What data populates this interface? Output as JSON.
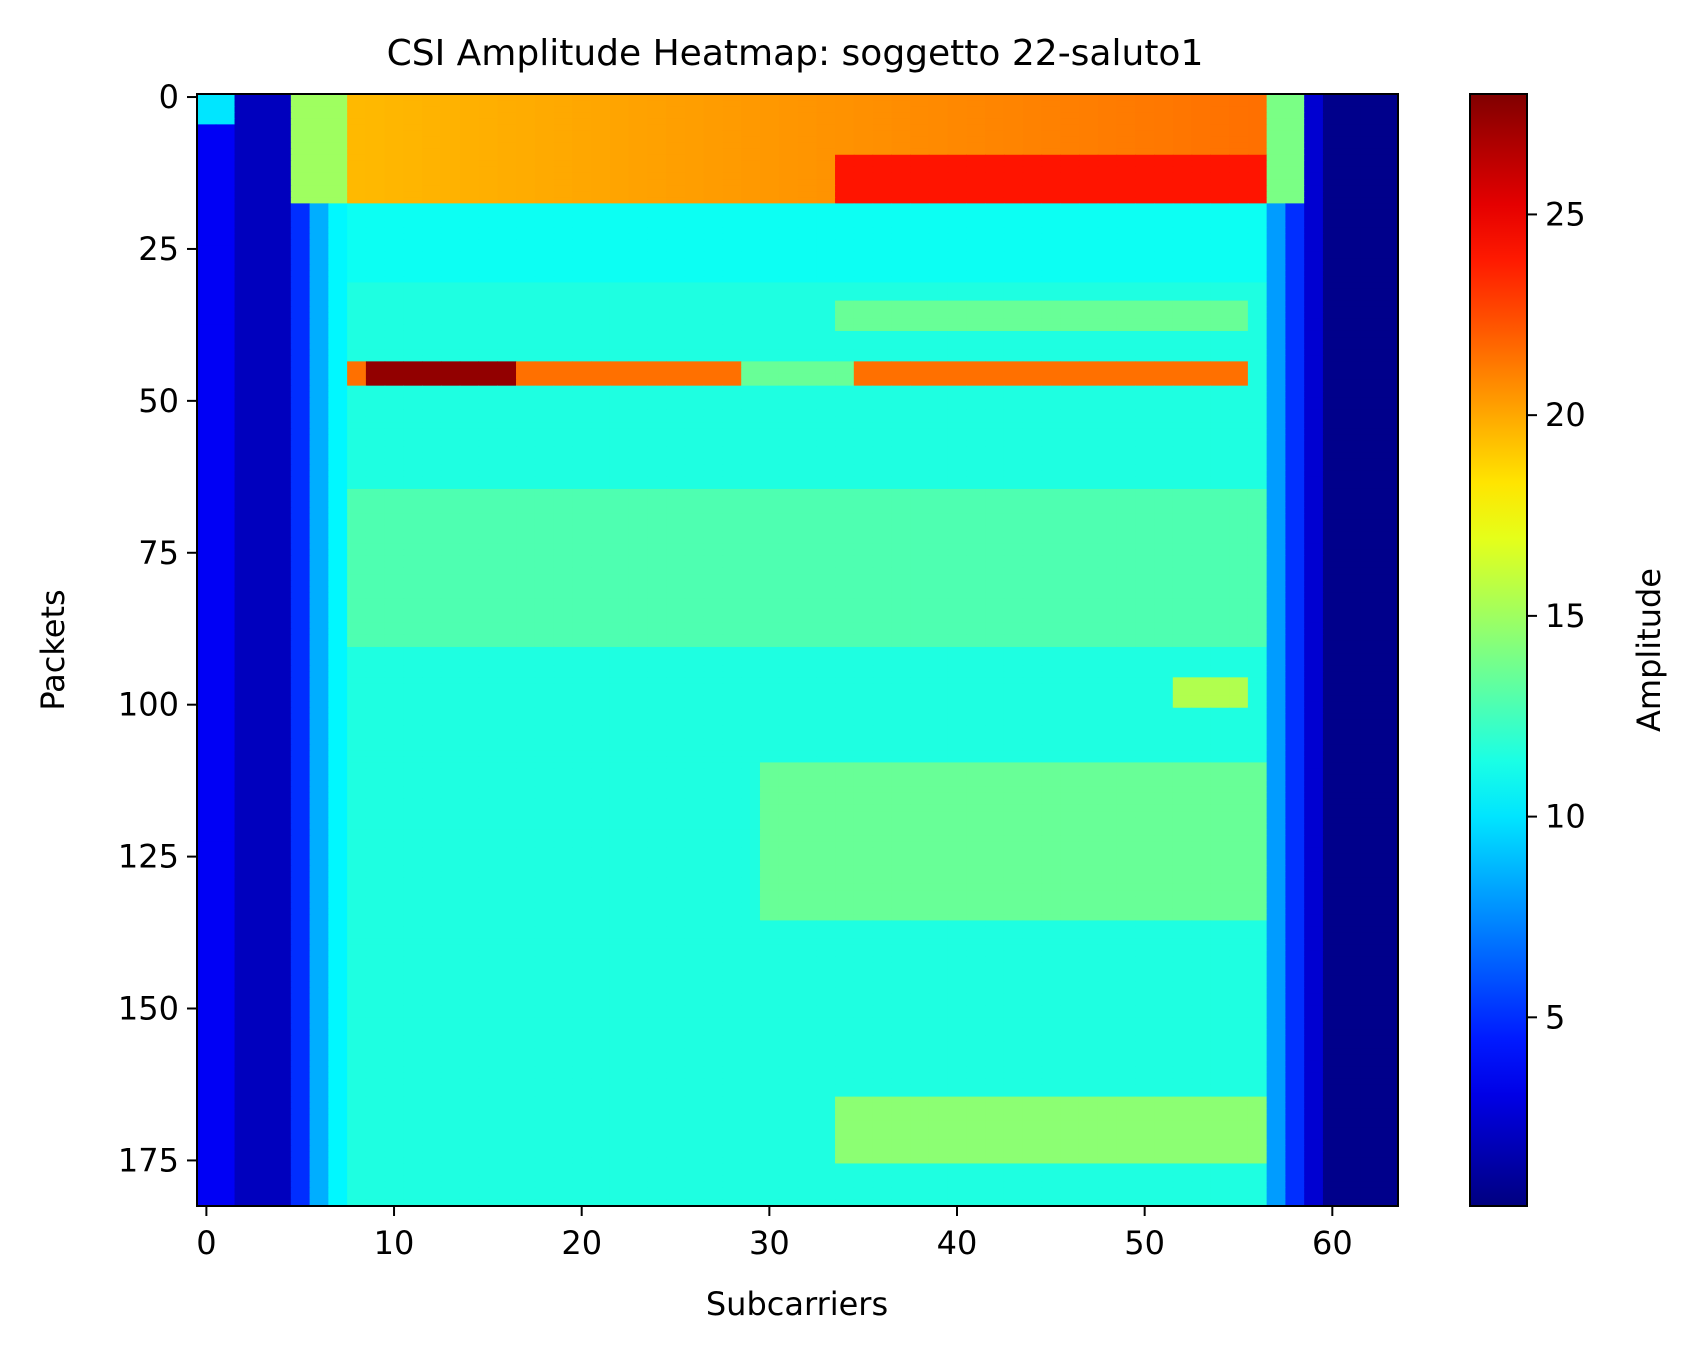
{
  "chart_data": {
    "type": "heatmap",
    "title": "CSI Amplitude Heatmap: soggetto 22-saluto1",
    "xlabel": "Subcarriers",
    "ylabel": "Packets",
    "colorbar_label": "Amplitude",
    "colormap": "jet",
    "y_axis_inverted": true,
    "n_subcarriers": 64,
    "n_packets": 183,
    "xlim": [
      -0.5,
      63.5
    ],
    "ylim": [
      182.5,
      -0.5
    ],
    "x_ticks": [
      0,
      10,
      20,
      30,
      40,
      50,
      60
    ],
    "y_ticks": [
      0,
      25,
      50,
      75,
      100,
      125,
      150,
      175
    ],
    "colorbar_range": [
      0.3,
      28
    ],
    "colorbar_ticks": [
      5,
      10,
      15,
      20,
      25
    ],
    "column_profile": [
      {
        "subcarriers": [
          0,
          1
        ],
        "amplitude": 3.5
      },
      {
        "subcarriers": [
          2,
          4
        ],
        "amplitude": 2.0
      },
      {
        "subcarriers": [
          5,
          5
        ],
        "amplitude": 5.0
      },
      {
        "subcarriers": [
          6,
          6
        ],
        "amplitude": 8.5
      },
      {
        "subcarriers": [
          7,
          7
        ],
        "amplitude": 10.5
      },
      {
        "subcarriers": [
          8,
          56
        ],
        "amplitude": 11.5
      },
      {
        "subcarriers": [
          57,
          57
        ],
        "amplitude": 8.0
      },
      {
        "subcarriers": [
          58,
          58
        ],
        "amplitude": 5.0
      },
      {
        "subcarriers": [
          59,
          59
        ],
        "amplitude": 2.5
      },
      {
        "subcarriers": [
          60,
          63
        ],
        "amplitude": 0.6
      }
    ],
    "top_corner_values": [
      {
        "subcarriers": [
          0,
          1
        ],
        "packets": [
          0,
          4
        ],
        "amplitude": 10
      }
    ],
    "band_regions": [
      {
        "packets": [
          0,
          17
        ],
        "subcarriers": [
          8,
          56
        ],
        "amplitude_start": 19.5,
        "amplitude_end": 21.5,
        "peak_packets": [
          10,
          17
        ],
        "peak_subcarriers": [
          34,
          56
        ],
        "peak_amplitude": 24
      },
      {
        "packets": [
          0,
          17
        ],
        "subcarriers": [
          5,
          7
        ],
        "amplitude": 15
      },
      {
        "packets": [
          0,
          17
        ],
        "subcarriers": [
          57,
          58
        ],
        "amplitude": 14
      },
      {
        "packets": [
          18,
          30
        ],
        "subcarriers": [
          8,
          56
        ],
        "amplitude": 11.0
      },
      {
        "packets": [
          34,
          38
        ],
        "subcarriers": [
          34,
          55
        ],
        "amplitude": 13.5
      },
      {
        "packets": [
          44,
          47
        ],
        "subcarriers": [
          8,
          55
        ],
        "amplitude": 21.5,
        "peak_subcarriers": [
          9,
          16
        ],
        "peak_amplitude": 27.5
      },
      {
        "packets": [
          44,
          47
        ],
        "subcarriers": [
          29,
          34
        ],
        "amplitude": 13.5
      },
      {
        "packets": [
          65,
          90
        ],
        "subcarriers": [
          8,
          56
        ],
        "amplitude": 12.8
      },
      {
        "packets": [
          96,
          100
        ],
        "subcarriers": [
          52,
          55
        ],
        "amplitude": 15.5
      },
      {
        "packets": [
          110,
          135
        ],
        "subcarriers": [
          30,
          56
        ],
        "amplitude": 13.5
      },
      {
        "packets": [
          165,
          175
        ],
        "subcarriers": [
          34,
          56
        ],
        "amplitude": 14.5
      }
    ]
  }
}
